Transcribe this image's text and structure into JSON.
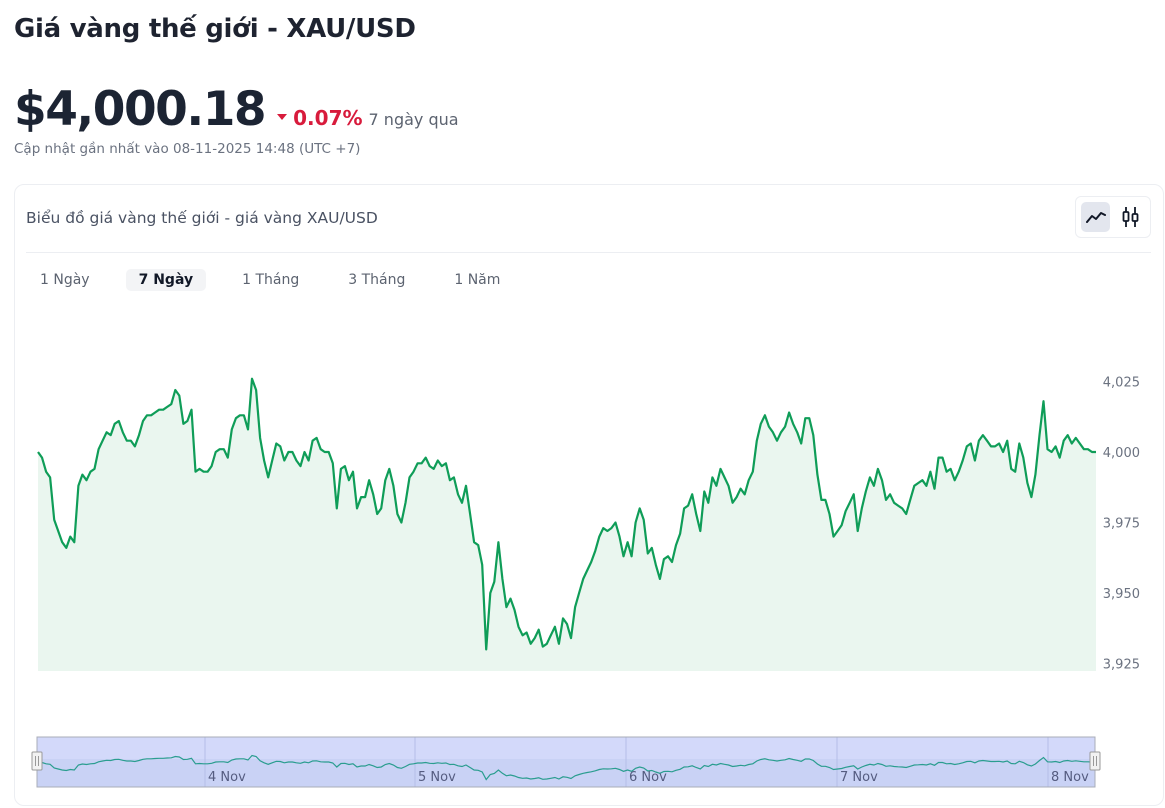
{
  "header": {
    "title": "Giá vàng thế giới - XAU/USD",
    "price": "$4,000.18",
    "change_pct": "0.07%",
    "change_direction": "down",
    "change_period": "7 ngày qua",
    "updated": "Cập nhật gần nhất vào 08-11-2025 14:48 (UTC +7)"
  },
  "colors": {
    "line": "#0f9d58",
    "fill": "#eaf6ef",
    "negative": "#d81b3c",
    "navigator_bg": "#c9d2f5",
    "navigator_line": "#2a9d8f"
  },
  "card": {
    "title": "Biểu đồ giá vàng thế giới - giá vàng XAU/USD",
    "chart_types": [
      {
        "name": "line-chart",
        "active": true
      },
      {
        "name": "candlestick-chart",
        "active": false
      }
    ],
    "tabs": [
      {
        "label": "1 Ngày",
        "active": false
      },
      {
        "label": "7 Ngày",
        "active": true
      },
      {
        "label": "1 Tháng",
        "active": false
      },
      {
        "label": "3 Tháng",
        "active": false
      },
      {
        "label": "1 Năm",
        "active": false
      }
    ]
  },
  "chart_data": {
    "type": "area",
    "title": "Biểu đồ giá vàng thế giới - giá vàng XAU/USD",
    "xlabel": "",
    "ylabel": "",
    "y_ticks": [
      4025,
      4000,
      3975,
      3950,
      3925
    ],
    "y_tick_labels": [
      "4,025",
      "4,000",
      "3,975",
      "3,950",
      "3,925"
    ],
    "ylim": [
      3921,
      4031
    ],
    "x_ticks": [
      "4 Nov",
      "5 Nov",
      "6 Nov",
      "7 Nov",
      "8 Nov"
    ],
    "grid": false,
    "legend": "none",
    "series": [
      {
        "name": "XAU/USD",
        "values": [
          4000,
          3998,
          3993,
          3991,
          3976,
          3972,
          3968,
          3966,
          3970,
          3968,
          3988,
          3992,
          3990,
          3993,
          3994,
          4001,
          4004,
          4007,
          4006,
          4010,
          4011,
          4007,
          4004,
          4004,
          4002,
          4006,
          4011,
          4013,
          4013,
          4014,
          4015,
          4015,
          4016,
          4017,
          4022,
          4020,
          4010,
          4011,
          4015,
          3993,
          3994,
          3993,
          3993,
          3995,
          4000,
          4001,
          4001,
          3998,
          4008,
          4012,
          4013,
          4013,
          4008,
          4026,
          4022,
          4005,
          3997,
          3991,
          3997,
          4003,
          4002,
          3997,
          4000,
          4000,
          3997,
          3995,
          4000,
          3997,
          4004,
          4005,
          4001,
          4000,
          4000,
          3996,
          3980,
          3994,
          3995,
          3990,
          3993,
          3980,
          3984,
          3984,
          3990,
          3985,
          3978,
          3980,
          3990,
          3994,
          3988,
          3978,
          3975,
          3982,
          3991,
          3993,
          3996,
          3996,
          3998,
          3995,
          3994,
          3997,
          3995,
          3996,
          3990,
          3991,
          3985,
          3982,
          3988,
          3978,
          3968,
          3967,
          3960,
          3930,
          3950,
          3954,
          3968,
          3955,
          3945,
          3948,
          3944,
          3938,
          3935,
          3936,
          3932,
          3934,
          3937,
          3931,
          3932,
          3935,
          3938,
          3932,
          3941,
          3939,
          3934,
          3945,
          3950,
          3955,
          3958,
          3961,
          3965,
          3970,
          3973,
          3972,
          3973,
          3975,
          3970,
          3963,
          3968,
          3963,
          3975,
          3980,
          3976,
          3964,
          3966,
          3960,
          3955,
          3962,
          3963,
          3961,
          3967,
          3971,
          3980,
          3981,
          3985,
          3978,
          3972,
          3986,
          3982,
          3991,
          3988,
          3994,
          3991,
          3988,
          3982,
          3984,
          3987,
          3985,
          3990,
          3993,
          4004,
          4010,
          4013,
          4009,
          4007,
          4004,
          4007,
          4009,
          4014,
          4010,
          4007,
          4003,
          4012,
          4012,
          4006,
          3992,
          3983,
          3983,
          3978,
          3970,
          3972,
          3974,
          3979,
          3982,
          3985,
          3972,
          3980,
          3986,
          3991,
          3988,
          3994,
          3990,
          3983,
          3985,
          3982,
          3981,
          3980,
          3978,
          3983,
          3988,
          3989,
          3990,
          3988,
          3993,
          3987,
          3998,
          3998,
          3993,
          3994,
          3990,
          3993,
          3997,
          4002,
          4003,
          3997,
          4004,
          4006,
          4004,
          4002,
          4002,
          4003,
          4000,
          4004,
          3994,
          3993,
          4003,
          3998,
          3989,
          3984,
          3992,
          4006,
          4018,
          4001,
          4000,
          4002,
          3998,
          4004,
          4006,
          4003,
          4005,
          4003,
          4001,
          4001,
          4000,
          4000
        ]
      }
    ],
    "navigator": {
      "labels": [
        "4 Nov",
        "5 Nov",
        "6 Nov",
        "7 Nov",
        "8 Nov"
      ]
    }
  }
}
